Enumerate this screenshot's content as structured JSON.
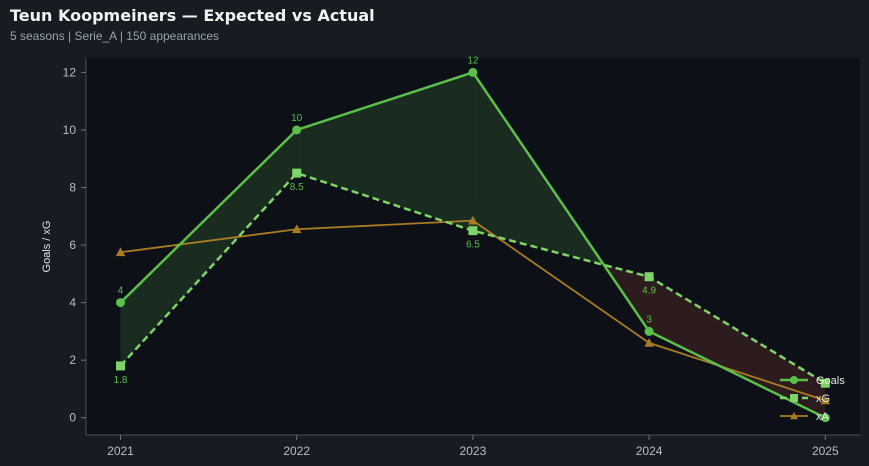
{
  "header": {
    "title": "Teun Koopmeiners — Expected vs Actual",
    "subtitle": "5 seasons | Serie_A | 150 appearances"
  },
  "colors": {
    "page_bg": "#171b22",
    "plot_bg": "#0d1016",
    "goals": "#5bbf4a",
    "xg": "#7ed36a",
    "xa": "#a97c24",
    "fill_over": "#1b2e20",
    "fill_under": "#2e1e1f"
  },
  "chart_data": {
    "type": "line",
    "ylabel": "Goals / xG",
    "x": [
      "2021",
      "2022",
      "2023",
      "2024",
      "2025"
    ],
    "ylim": [
      -0.6,
      12.5
    ],
    "yticks": [
      "0",
      "2",
      "4",
      "6",
      "8",
      "10",
      "12"
    ],
    "series": [
      {
        "name": "Goals",
        "values": [
          4,
          10,
          12,
          3,
          0
        ],
        "labels": [
          "4",
          "10",
          "12",
          "3",
          ""
        ],
        "marker": "circle",
        "style": "solid"
      },
      {
        "name": "xG",
        "values": [
          1.8,
          8.5,
          6.5,
          4.9,
          1.2
        ],
        "labels": [
          "1.8",
          "8.5",
          "6.5",
          "4.9",
          ""
        ],
        "marker": "square",
        "style": "dashed"
      },
      {
        "name": "xA",
        "values": [
          5.75,
          6.55,
          6.85,
          2.6,
          0.6
        ],
        "marker": "triangle",
        "style": "solid"
      }
    ],
    "fill_between": [
      "Goals",
      "xG"
    ],
    "legend": "bottom-right",
    "grid": false
  }
}
